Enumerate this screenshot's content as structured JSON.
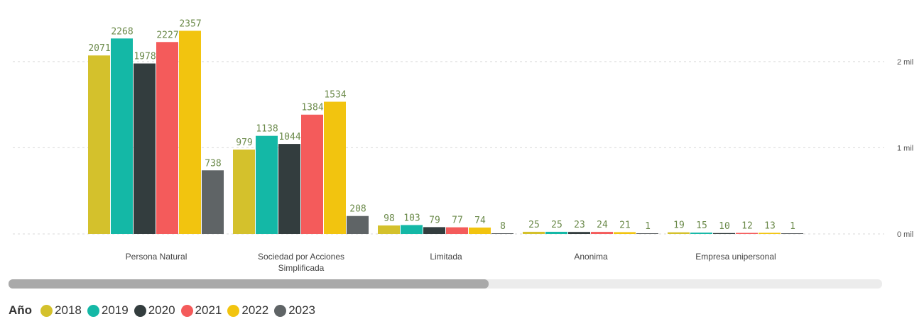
{
  "chart_data": {
    "type": "bar",
    "categories": [
      "Persona Natural",
      "Sociedad por Acciones Simplificada",
      "Limitada",
      "Anonima",
      "Empresa unipersonal"
    ],
    "category_label_lines": [
      [
        "Persona Natural"
      ],
      [
        "Sociedad por Acciones",
        "Simplificada"
      ],
      [
        "Limitada"
      ],
      [
        "Anonima"
      ],
      [
        "Empresa unipersonal"
      ]
    ],
    "series": [
      {
        "name": "2018",
        "color": "#d4c12c",
        "values": [
          2071,
          979,
          98,
          25,
          19
        ]
      },
      {
        "name": "2019",
        "color": "#14b8a6",
        "values": [
          2268,
          1138,
          103,
          25,
          15
        ]
      },
      {
        "name": "2020",
        "color": "#333d3e",
        "values": [
          1978,
          1044,
          79,
          23,
          10
        ]
      },
      {
        "name": "2021",
        "color": "#f45b5b",
        "values": [
          2227,
          1384,
          77,
          24,
          12
        ]
      },
      {
        "name": "2022",
        "color": "#f2c40f",
        "values": [
          2357,
          1534,
          74,
          21,
          13
        ]
      },
      {
        "name": "2023",
        "color": "#5f6466",
        "values": [
          738,
          208,
          8,
          1,
          1
        ]
      }
    ],
    "data_labels": [
      [
        "2071",
        "979",
        "98",
        "25",
        "19"
      ],
      [
        "2268",
        "1138",
        "103",
        "25",
        "15"
      ],
      [
        "1978",
        "1044",
        "79",
        "23",
        "10"
      ],
      [
        "2227",
        "1384",
        "77",
        "24",
        "12"
      ],
      [
        "2357",
        "1534",
        "74",
        "21",
        "13"
      ],
      [
        "738",
        "208",
        "8",
        "1",
        "1"
      ]
    ],
    "data_label_color": "#6b8a4a",
    "y_ticks": [
      {
        "value": 0,
        "label": "0 mil"
      },
      {
        "value": 1000,
        "label": "1 mil"
      },
      {
        "value": 2000,
        "label": "2 mil"
      }
    ],
    "ylim": [
      0,
      2550
    ],
    "y_axis_position": "right",
    "grid": true,
    "legend_position": "bottom-left"
  },
  "legend": {
    "title": "Año",
    "items": [
      {
        "label": "2018",
        "color": "#d4c12c"
      },
      {
        "label": "2019",
        "color": "#14b8a6"
      },
      {
        "label": "2020",
        "color": "#333d3e"
      },
      {
        "label": "2021",
        "color": "#f45b5b"
      },
      {
        "label": "2022",
        "color": "#f2c40f"
      },
      {
        "label": "2023",
        "color": "#5f6466"
      }
    ]
  },
  "scrollbar": {
    "position": 0.55
  }
}
